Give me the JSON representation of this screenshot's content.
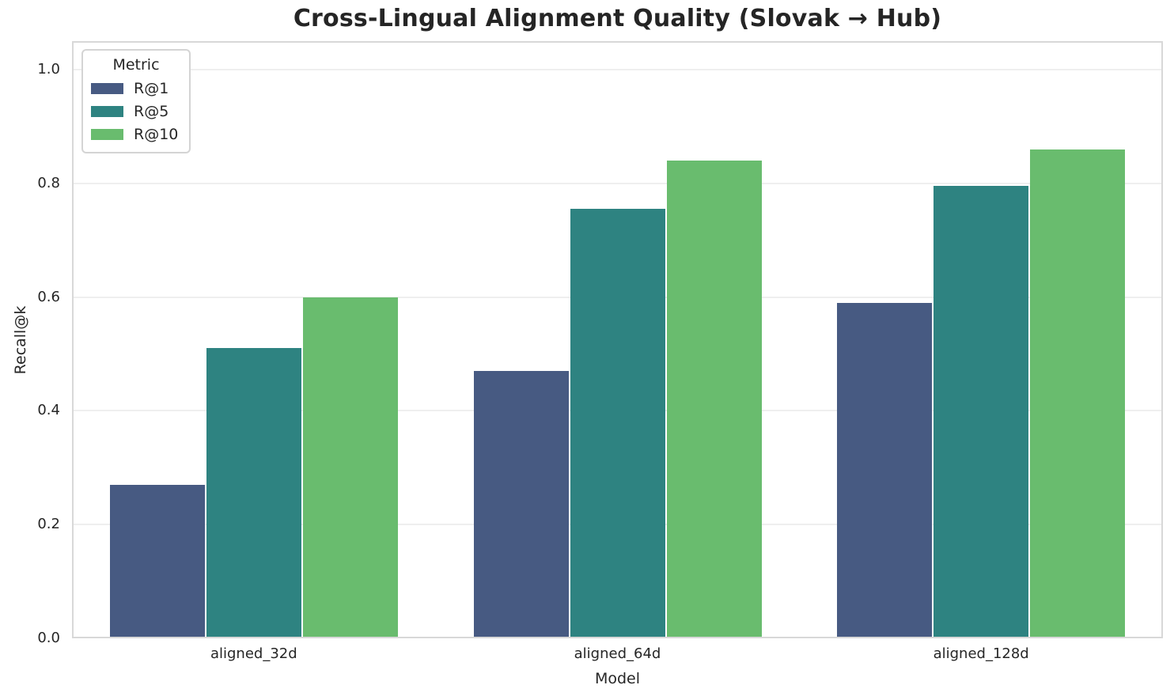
{
  "chart_data": {
    "type": "bar",
    "title": "Cross-Lingual Alignment Quality (Slovak → Hub)",
    "categories": [
      "aligned_32d",
      "aligned_64d",
      "aligned_128d"
    ],
    "series": [
      {
        "name": "R@1",
        "color": "#475A82",
        "values": [
          0.27,
          0.47,
          0.59
        ]
      },
      {
        "name": "R@5",
        "color": "#2E8381",
        "values": [
          0.51,
          0.755,
          0.795
        ]
      },
      {
        "name": "R@10",
        "color": "#69BC6E",
        "values": [
          0.6,
          0.84,
          0.86
        ]
      }
    ],
    "xlabel": "Model",
    "ylabel": "Recall@k",
    "ylim": [
      0,
      1.05
    ],
    "yticks": [
      0.0,
      0.2,
      0.4,
      0.6,
      0.8,
      1.0
    ],
    "grid": true,
    "legend_title": "Metric",
    "legend_position": "upper left",
    "colors": {
      "background": "#ffffff",
      "text": "#262626",
      "grid": "#efefef",
      "spine": "#d8d8d8"
    }
  }
}
